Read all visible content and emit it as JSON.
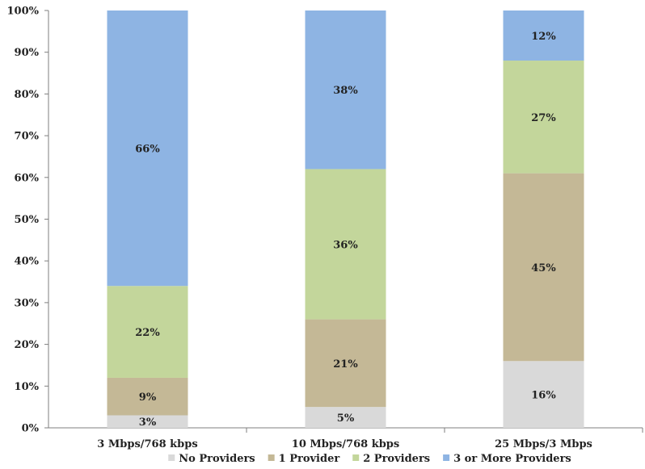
{
  "chart_data": {
    "type": "bar",
    "stacked": true,
    "categories": [
      "3 Mbps/768 kbps",
      "10 Mbps/768 kbps",
      "25 Mbps/3 Mbps"
    ],
    "series": [
      {
        "name": "No Providers",
        "values": [
          3,
          5,
          16
        ],
        "labels": [
          "3%",
          "5%",
          "16%"
        ],
        "color": "#d9d9d9"
      },
      {
        "name": "1 Provider",
        "values": [
          9,
          21,
          45
        ],
        "labels": [
          "9%",
          "21%",
          "45%"
        ],
        "color": "#c4b896"
      },
      {
        "name": "2 Providers",
        "values": [
          22,
          36,
          27
        ],
        "labels": [
          "22%",
          "36%",
          "27%"
        ],
        "color": "#c3d69b"
      },
      {
        "name": "3 or More Providers",
        "values": [
          66,
          38,
          12
        ],
        "labels": [
          "66%",
          "38%",
          "12%"
        ],
        "color": "#8eb4e3"
      }
    ],
    "y_ticks": [
      "0%",
      "10%",
      "20%",
      "30%",
      "40%",
      "50%",
      "60%",
      "70%",
      "80%",
      "90%",
      "100%"
    ],
    "ylim": [
      0,
      100
    ],
    "grid": false,
    "legend_position": "bottom"
  }
}
